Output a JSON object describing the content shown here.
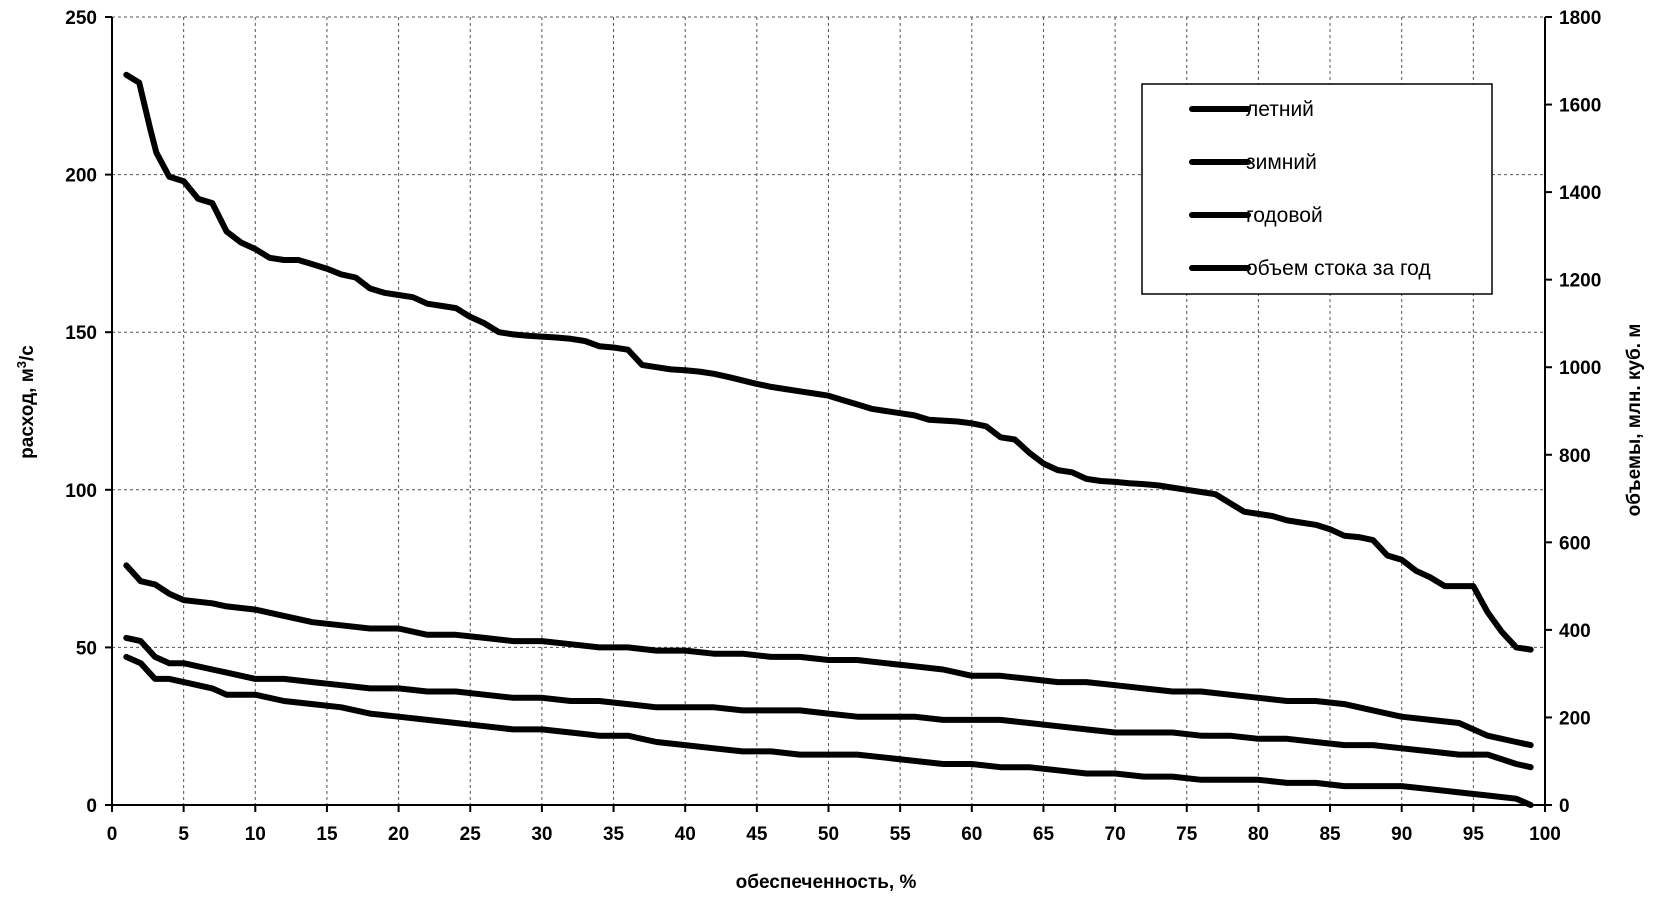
{
  "chart_data": {
    "type": "line",
    "xlabel": "обеспеченность, %",
    "ylabel": "расход, м³/с",
    "ylabel_parts": [
      "расход, м",
      "3",
      "/с"
    ],
    "y2label": "объемы, млн. куб. м",
    "xlim": [
      0,
      100
    ],
    "ylim": [
      0,
      250
    ],
    "y2lim": [
      0,
      1800
    ],
    "x_ticks": [
      0,
      5,
      10,
      15,
      20,
      25,
      30,
      35,
      40,
      45,
      50,
      55,
      60,
      65,
      70,
      75,
      80,
      85,
      90,
      95,
      100
    ],
    "y_ticks": [
      0,
      50,
      100,
      150,
      200,
      250
    ],
    "y2_ticks": [
      0,
      200,
      400,
      600,
      800,
      1000,
      1200,
      1400,
      1600,
      1800
    ],
    "grid": true,
    "legend_position": "top-right",
    "line_color": "#000000",
    "series": [
      {
        "name": "летний",
        "axis": "left",
        "x": [
          1,
          2,
          3,
          4,
          5,
          7,
          8,
          10,
          12,
          14,
          16,
          18,
          20,
          22,
          24,
          26,
          28,
          30,
          32,
          34,
          36,
          38,
          40,
          42,
          44,
          46,
          48,
          50,
          52,
          54,
          56,
          58,
          60,
          62,
          64,
          66,
          68,
          70,
          72,
          74,
          76,
          78,
          80,
          82,
          84,
          86,
          88,
          90,
          92,
          94,
          96,
          98,
          99
        ],
        "y": [
          76,
          71,
          70,
          67,
          65,
          64,
          63,
          62,
          60,
          58,
          57,
          56,
          56,
          54,
          54,
          53,
          52,
          52,
          51,
          50,
          50,
          49,
          49,
          48,
          48,
          47,
          47,
          46,
          46,
          45,
          44,
          43,
          41,
          41,
          40,
          39,
          39,
          38,
          37,
          36,
          36,
          35,
          34,
          33,
          33,
          32,
          30,
          28,
          27,
          26,
          22,
          20,
          19
        ]
      },
      {
        "name": "зимний",
        "axis": "left",
        "x": [
          1,
          2,
          3,
          4,
          5,
          7,
          8,
          10,
          12,
          14,
          16,
          18,
          20,
          22,
          24,
          26,
          28,
          30,
          32,
          34,
          36,
          38,
          40,
          42,
          44,
          46,
          48,
          50,
          52,
          54,
          56,
          58,
          60,
          62,
          64,
          66,
          68,
          70,
          72,
          74,
          76,
          78,
          80,
          82,
          84,
          86,
          88,
          90,
          92,
          94,
          96,
          98,
          99
        ],
        "y": [
          53,
          52,
          47,
          45,
          45,
          43,
          42,
          40,
          40,
          39,
          38,
          37,
          37,
          36,
          36,
          35,
          34,
          34,
          33,
          33,
          32,
          31,
          31,
          31,
          30,
          30,
          30,
          29,
          28,
          28,
          28,
          27,
          27,
          27,
          26,
          25,
          24,
          23,
          23,
          23,
          22,
          22,
          21,
          21,
          20,
          19,
          19,
          18,
          17,
          16,
          16,
          13,
          12
        ]
      },
      {
        "name": "годовой",
        "axis": "left",
        "x": [
          1,
          2,
          3,
          4,
          5,
          7,
          8,
          10,
          12,
          14,
          16,
          18,
          20,
          22,
          24,
          26,
          28,
          30,
          32,
          34,
          36,
          38,
          40,
          42,
          44,
          46,
          48,
          50,
          52,
          54,
          56,
          58,
          60,
          62,
          64,
          66,
          68,
          70,
          72,
          74,
          76,
          78,
          80,
          82,
          84,
          86,
          88,
          90,
          92,
          94,
          96,
          98,
          99
        ],
        "y": [
          47,
          45,
          40,
          40,
          39,
          37,
          35,
          35,
          33,
          32,
          31,
          29,
          28,
          27,
          26,
          25,
          24,
          24,
          23,
          22,
          22,
          20,
          19,
          18,
          17,
          17,
          16,
          16,
          16,
          15,
          14,
          13,
          13,
          12,
          12,
          11,
          10,
          10,
          9,
          9,
          8,
          8,
          8,
          7,
          7,
          6,
          6,
          6,
          5,
          4,
          3,
          2,
          0
        ]
      },
      {
        "name": "объем стока за год",
        "axis": "right",
        "x": [
          1,
          1.9,
          2.7,
          3.1,
          4,
          5,
          6,
          7,
          8,
          9,
          10,
          11,
          12,
          13,
          14,
          15,
          16,
          17,
          18,
          19,
          20,
          21,
          22,
          23,
          24,
          25,
          26,
          27,
          28,
          29,
          30,
          31,
          32,
          33,
          34,
          35,
          36,
          37,
          38,
          39,
          40,
          41,
          42,
          43,
          44,
          45,
          46,
          47,
          48,
          49,
          50,
          51,
          52,
          53,
          54,
          55,
          56,
          57,
          58,
          59,
          60,
          61,
          62,
          63,
          64,
          65,
          66,
          67,
          68,
          69,
          70,
          71,
          72,
          73,
          74,
          75,
          76,
          77,
          78,
          79,
          80,
          81,
          82,
          83,
          84,
          85,
          86,
          87,
          88,
          89,
          90,
          91,
          92,
          93,
          94,
          95,
          96,
          97,
          98,
          99
        ],
        "y": [
          1668,
          1650,
          1540,
          1490,
          1435,
          1425,
          1385,
          1375,
          1310,
          1285,
          1270,
          1250,
          1245,
          1245,
          1235,
          1225,
          1212,
          1205,
          1180,
          1170,
          1165,
          1160,
          1145,
          1140,
          1135,
          1115,
          1100,
          1080,
          1075,
          1072,
          1070,
          1068,
          1065,
          1060,
          1048,
          1045,
          1040,
          1005,
          1000,
          995,
          993,
          990,
          985,
          978,
          970,
          962,
          955,
          950,
          945,
          940,
          935,
          925,
          915,
          905,
          900,
          895,
          890,
          880,
          878,
          876,
          872,
          865,
          840,
          835,
          805,
          780,
          765,
          760,
          745,
          740,
          738,
          735,
          733,
          730,
          725,
          720,
          715,
          710,
          690,
          670,
          665,
          660,
          650,
          645,
          640,
          630,
          615,
          612,
          605,
          570,
          560,
          535,
          520,
          500,
          500,
          500,
          440,
          395,
          360,
          355
        ]
      }
    ]
  }
}
